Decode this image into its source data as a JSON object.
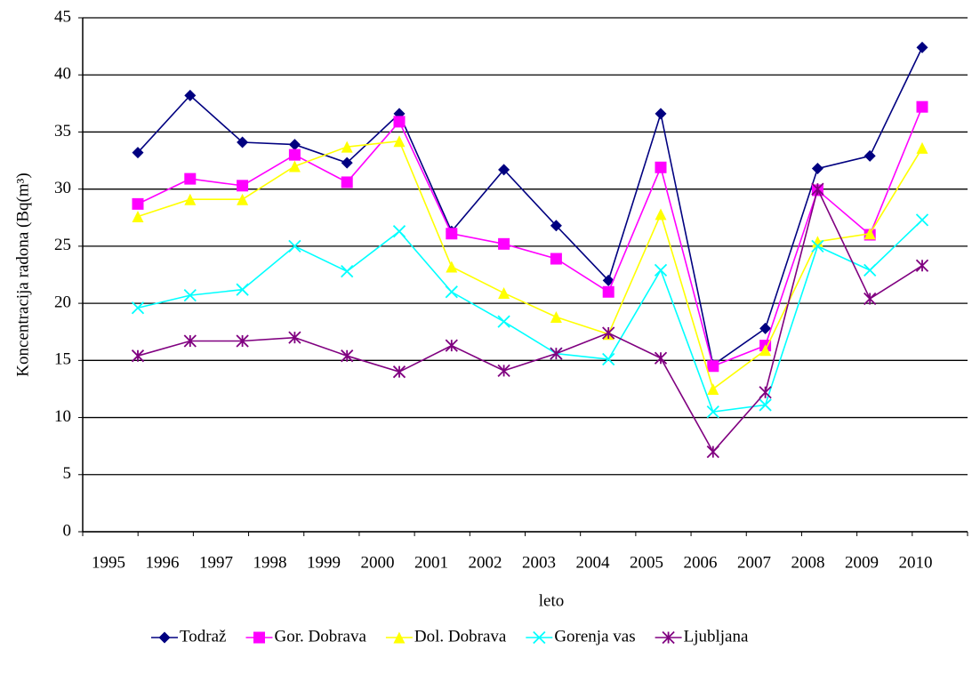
{
  "chart_data": {
    "type": "line",
    "x_label": "leto",
    "y_label": "Koncentracija radona (Bq(m³)",
    "categories": [
      "1995",
      "1996",
      "1997",
      "1998",
      "1999",
      "2000",
      "2001",
      "2002",
      "2003",
      "2004",
      "2005",
      "2006",
      "2007",
      "2008",
      "2009",
      "2010"
    ],
    "series": [
      {
        "name": "Todraž",
        "color": "#000080",
        "marker": "diamond",
        "values": [
          33.2,
          38.2,
          34.1,
          33.9,
          32.3,
          36.6,
          26.3,
          31.7,
          26.8,
          22.0,
          36.6,
          14.6,
          17.8,
          31.8,
          32.9,
          42.4
        ]
      },
      {
        "name": "Gor. Dobrava",
        "color": "#ff00ff",
        "marker": "square",
        "values": [
          28.7,
          30.9,
          30.3,
          33.0,
          30.6,
          35.9,
          26.1,
          25.2,
          23.9,
          21.0,
          31.9,
          14.5,
          16.3,
          29.9,
          26.0,
          37.2
        ]
      },
      {
        "name": "Dol. Dobrava",
        "color": "#ffff00",
        "marker": "triangle",
        "values": [
          27.6,
          29.1,
          29.1,
          32.0,
          33.7,
          34.2,
          23.2,
          20.9,
          18.8,
          17.3,
          27.8,
          12.5,
          15.9,
          25.4,
          26.1,
          33.6
        ]
      },
      {
        "name": "Gorenja vas",
        "color": "#00ffff",
        "marker": "x",
        "values": [
          19.6,
          20.7,
          21.2,
          25.0,
          22.8,
          26.3,
          21.0,
          18.4,
          15.6,
          15.1,
          22.9,
          10.5,
          11.1,
          25.0,
          22.9,
          27.3
        ]
      },
      {
        "name": "Ljubljana",
        "color": "#800080",
        "marker": "asterisk",
        "values": [
          15.4,
          16.7,
          16.7,
          17.0,
          15.4,
          14.0,
          16.3,
          14.1,
          15.6,
          17.4,
          15.2,
          7.0,
          12.2,
          30.0,
          20.4,
          23.3
        ]
      }
    ],
    "ylim": [
      0,
      45
    ],
    "yticks": [
      0,
      5,
      10,
      15,
      20,
      25,
      30,
      35,
      40,
      45
    ],
    "grid": true,
    "legend": "bottom"
  }
}
